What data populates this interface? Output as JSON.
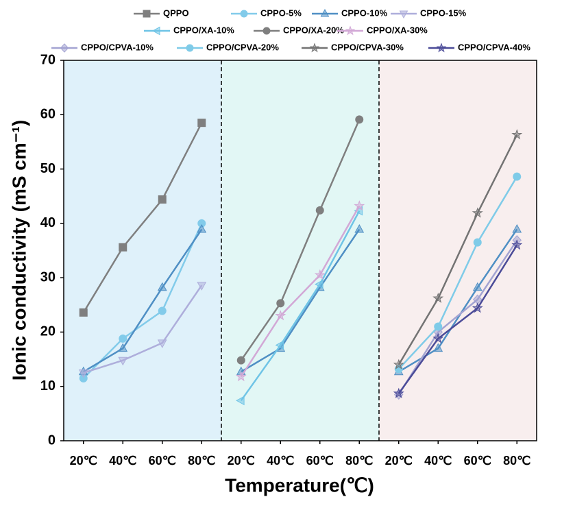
{
  "chart_data": {
    "type": "line",
    "xlabel": "Temperature(℃)",
    "ylabel": "Ionic conductivity (mS cm⁻¹)",
    "categories": [
      "20℃",
      "40℃",
      "60℃",
      "80℃",
      "20℃",
      "40℃",
      "60℃",
      "80℃",
      "20℃",
      "40℃",
      "60℃",
      "80℃"
    ],
    "panel_colors": [
      "#dff1fa",
      "#e2f7f5",
      "#f8eeee"
    ],
    "ylim": [
      0,
      70
    ],
    "yticks": [
      0,
      10,
      20,
      30,
      40,
      50,
      60,
      70
    ],
    "series": [
      {
        "name": "QPPO",
        "color": "#7f7f7f",
        "marker": "square",
        "values": [
          23.6,
          35.6,
          44.4,
          58.5,
          null,
          null,
          null,
          null,
          null,
          null,
          null,
          null
        ]
      },
      {
        "name": "CPPO-5%",
        "color": "#82cbea",
        "marker": "circle",
        "values": [
          11.5,
          18.8,
          23.9,
          40.0,
          null,
          null,
          null,
          null,
          null,
          null,
          null,
          null
        ]
      },
      {
        "name": "CPPO-10%",
        "color": "#4f8fc4",
        "marker": "triangle-up",
        "values": [
          12.7,
          17.0,
          28.2,
          38.9,
          12.7,
          17.0,
          28.2,
          38.9,
          12.7,
          17.0,
          28.2,
          38.9
        ]
      },
      {
        "name": "CPPO-15%",
        "color": "#aeaedb",
        "marker": "triangle-down",
        "values": [
          12.5,
          14.8,
          18.0,
          28.6,
          null,
          null,
          null,
          null,
          null,
          null,
          null,
          null
        ]
      },
      {
        "name": "CPPO/XA-10%",
        "color": "#6fc4e6",
        "marker": "triangle-left",
        "values": [
          null,
          null,
          null,
          null,
          7.4,
          17.6,
          28.8,
          42.3,
          null,
          null,
          null,
          null
        ]
      },
      {
        "name": "CPPO/XA-20%",
        "color": "#7f7f7f",
        "marker": "circle",
        "values": [
          null,
          null,
          null,
          null,
          14.8,
          25.3,
          42.4,
          59.1,
          null,
          null,
          null,
          null
        ]
      },
      {
        "name": "CPPO/XA-30%",
        "color": "#d2a8d6",
        "marker": "star",
        "values": [
          null,
          null,
          null,
          null,
          11.8,
          23.0,
          30.5,
          43.2,
          null,
          null,
          null,
          null
        ]
      },
      {
        "name": "CPPO/CPVA-10%",
        "color": "#a3a3d2",
        "marker": "diamond",
        "values": [
          null,
          null,
          null,
          null,
          null,
          null,
          null,
          null,
          8.5,
          20.0,
          26.0,
          36.9
        ]
      },
      {
        "name": "CPPO/CPVA-20%",
        "color": "#7fcbe8",
        "marker": "circle",
        "values": [
          null,
          null,
          null,
          null,
          null,
          null,
          null,
          null,
          13.2,
          21.0,
          36.5,
          48.6
        ]
      },
      {
        "name": "CPPO/CPVA-30%",
        "color": "#737373",
        "marker": "star",
        "values": [
          null,
          null,
          null,
          null,
          null,
          null,
          null,
          null,
          14.0,
          26.2,
          41.9,
          56.3
        ]
      },
      {
        "name": "CPPO/CPVA-40%",
        "color": "#4b4b98",
        "marker": "star",
        "values": [
          null,
          null,
          null,
          null,
          null,
          null,
          null,
          null,
          8.7,
          18.8,
          24.4,
          36.0
        ]
      }
    ]
  }
}
